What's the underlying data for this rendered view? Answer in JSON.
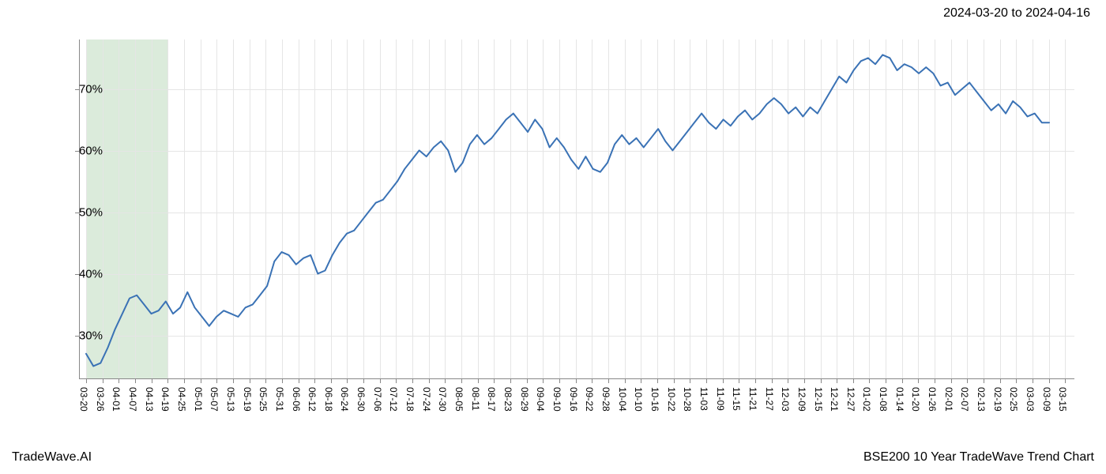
{
  "header": {
    "date_range": "2024-03-20 to 2024-04-16"
  },
  "footer": {
    "left": "TradeWave.AI",
    "right": "BSE200 10 Year TradeWave Trend Chart"
  },
  "chart": {
    "type": "line",
    "background_color": "#ffffff",
    "grid_color": "#e5e5e5",
    "axis_color": "#888888",
    "line_color": "#3a72b5",
    "line_width": 2,
    "highlight_band": {
      "color": "rgba(152,198,152,0.35)",
      "x_start_index": 0,
      "x_end_index": 5
    },
    "ylim": [
      23,
      78
    ],
    "y_ticks": [
      30,
      40,
      50,
      60,
      70
    ],
    "y_tick_labels": [
      "30%",
      "40%",
      "50%",
      "60%",
      "70%"
    ],
    "y_label_fontsize": 15,
    "x_labels": [
      "03-20",
      "03-26",
      "04-01",
      "04-07",
      "04-13",
      "04-19",
      "04-25",
      "05-01",
      "05-07",
      "05-13",
      "05-19",
      "05-25",
      "05-31",
      "06-06",
      "06-12",
      "06-18",
      "06-24",
      "06-30",
      "07-06",
      "07-12",
      "07-18",
      "07-24",
      "07-30",
      "08-05",
      "08-11",
      "08-17",
      "08-23",
      "08-29",
      "09-04",
      "09-10",
      "09-16",
      "09-22",
      "09-28",
      "10-04",
      "10-10",
      "10-16",
      "10-22",
      "10-28",
      "11-03",
      "11-09",
      "11-15",
      "11-21",
      "11-27",
      "12-03",
      "12-09",
      "12-15",
      "12-21",
      "12-27",
      "01-02",
      "01-08",
      "01-14",
      "01-20",
      "01-26",
      "02-01",
      "02-07",
      "02-13",
      "02-19",
      "02-25",
      "03-03",
      "03-09",
      "03-15"
    ],
    "x_label_fontsize": 12,
    "x_tick_step": 1,
    "values": [
      27.0,
      25.0,
      25.5,
      28.0,
      31.0,
      33.5,
      36.0,
      36.5,
      35.0,
      33.5,
      34.0,
      35.5,
      33.5,
      34.5,
      37.0,
      34.5,
      33.0,
      31.5,
      33.0,
      34.0,
      33.5,
      33.0,
      34.5,
      35.0,
      36.5,
      38.0,
      42.0,
      43.5,
      43.0,
      41.5,
      42.5,
      43.0,
      40.0,
      40.5,
      43.0,
      45.0,
      46.5,
      47.0,
      48.5,
      50.0,
      51.5,
      52.0,
      53.5,
      55.0,
      57.0,
      58.5,
      60.0,
      59.0,
      60.5,
      61.5,
      60.0,
      56.5,
      58.0,
      61.0,
      62.5,
      61.0,
      62.0,
      63.5,
      65.0,
      66.0,
      64.5,
      63.0,
      65.0,
      63.5,
      60.5,
      62.0,
      60.5,
      58.5,
      57.0,
      59.0,
      57.0,
      56.5,
      58.0,
      61.0,
      62.5,
      61.0,
      62.0,
      60.5,
      62.0,
      63.5,
      61.5,
      60.0,
      61.5,
      63.0,
      64.5,
      66.0,
      64.5,
      63.5,
      65.0,
      64.0,
      65.5,
      66.5,
      65.0,
      66.0,
      67.5,
      68.5,
      67.5,
      66.0,
      67.0,
      65.5,
      67.0,
      66.0,
      68.0,
      70.0,
      72.0,
      71.0,
      73.0,
      74.5,
      75.0,
      74.0,
      75.5,
      75.0,
      73.0,
      74.0,
      73.5,
      72.5,
      73.5,
      72.5,
      70.5,
      71.0,
      69.0,
      70.0,
      71.0,
      69.5,
      68.0,
      66.5,
      67.5,
      66.0,
      68.0,
      67.0,
      65.5,
      66.0,
      64.5,
      64.5
    ]
  }
}
